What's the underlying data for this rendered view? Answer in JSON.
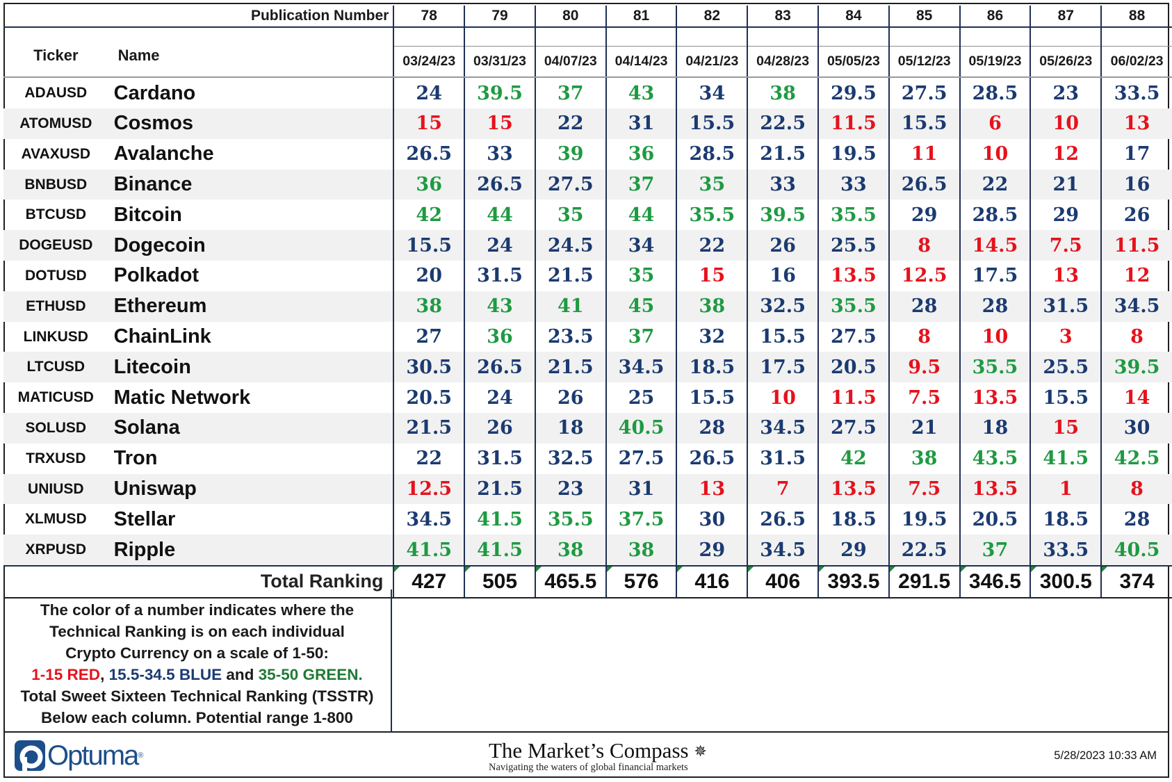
{
  "header": {
    "publication_label": "Publication Number",
    "ticker_label": "Ticker",
    "name_label": "Name",
    "publications": [
      "78",
      "79",
      "80",
      "81",
      "82",
      "83",
      "84",
      "85",
      "86",
      "87",
      "88"
    ],
    "dates": [
      "03/24/23",
      "03/31/23",
      "04/07/23",
      "04/14/23",
      "04/21/23",
      "04/28/23",
      "05/05/23",
      "05/12/23",
      "05/19/23",
      "05/26/23",
      "06/02/23"
    ]
  },
  "colors": {
    "red": "#e5121c",
    "blue": "#1b3a70",
    "green": "#1f9a42"
  },
  "rows": [
    {
      "ticker": "ADAUSD",
      "name": "Cardano",
      "values": [
        "24",
        "39.5",
        "37",
        "43",
        "34",
        "38",
        "29.5",
        "27.5",
        "28.5",
        "23",
        "33.5"
      ]
    },
    {
      "ticker": "ATOMUSD",
      "name": "Cosmos",
      "values": [
        "15",
        "15",
        "22",
        "31",
        "15.5",
        "22.5",
        "11.5",
        "15.5",
        "6",
        "10",
        "13"
      ]
    },
    {
      "ticker": "AVAXUSD",
      "name": "Avalanche",
      "values": [
        "26.5",
        "33",
        "39",
        "36",
        "28.5",
        "21.5",
        "19.5",
        "11",
        "10",
        "12",
        "17"
      ]
    },
    {
      "ticker": "BNBUSD",
      "name": "Binance",
      "values": [
        "36",
        "26.5",
        "27.5",
        "37",
        "35",
        "33",
        "33",
        "26.5",
        "22",
        "21",
        "16"
      ]
    },
    {
      "ticker": "BTCUSD",
      "name": "Bitcoin",
      "values": [
        "42",
        "44",
        "35",
        "44",
        "35.5",
        "39.5",
        "35.5",
        "29",
        "28.5",
        "29",
        "26"
      ]
    },
    {
      "ticker": "DOGEUSD",
      "name": "Dogecoin",
      "values": [
        "15.5",
        "24",
        "24.5",
        "34",
        "22",
        "26",
        "25.5",
        "8",
        "14.5",
        "7.5",
        "11.5"
      ]
    },
    {
      "ticker": "DOTUSD",
      "name": "Polkadot",
      "values": [
        "20",
        "31.5",
        "21.5",
        "35",
        "15",
        "16",
        "13.5",
        "12.5",
        "17.5",
        "13",
        "12"
      ]
    },
    {
      "ticker": "ETHUSD",
      "name": "Ethereum",
      "values": [
        "38",
        "43",
        "41",
        "45",
        "38",
        "32.5",
        "35.5",
        "28",
        "28",
        "31.5",
        "34.5"
      ]
    },
    {
      "ticker": "LINKUSD",
      "name": "ChainLink",
      "values": [
        "27",
        "36",
        "23.5",
        "37",
        "32",
        "15.5",
        "27.5",
        "8",
        "10",
        "3",
        "8"
      ]
    },
    {
      "ticker": "LTCUSD",
      "name": "Litecoin",
      "values": [
        "30.5",
        "26.5",
        "21.5",
        "34.5",
        "18.5",
        "17.5",
        "20.5",
        "9.5",
        "35.5",
        "25.5",
        "39.5"
      ]
    },
    {
      "ticker": "MATICUSD",
      "name": "Matic Network",
      "values": [
        "20.5",
        "24",
        "26",
        "25",
        "15.5",
        "10",
        "11.5",
        "7.5",
        "13.5",
        "15.5",
        "14"
      ]
    },
    {
      "ticker": "SOLUSD",
      "name": "Solana",
      "values": [
        "21.5",
        "26",
        "18",
        "40.5",
        "28",
        "34.5",
        "27.5",
        "21",
        "18",
        "15",
        "30"
      ]
    },
    {
      "ticker": "TRXUSD",
      "name": "Tron",
      "values": [
        "22",
        "31.5",
        "32.5",
        "27.5",
        "26.5",
        "31.5",
        "42",
        "38",
        "43.5",
        "41.5",
        "42.5"
      ]
    },
    {
      "ticker": "UNIUSD",
      "name": "Uniswap",
      "values": [
        "12.5",
        "21.5",
        "23",
        "31",
        "13",
        "7",
        "13.5",
        "7.5",
        "13.5",
        "1",
        "8"
      ]
    },
    {
      "ticker": "XLMUSD",
      "name": "Stellar",
      "values": [
        "34.5",
        "41.5",
        "35.5",
        "37.5",
        "30",
        "26.5",
        "18.5",
        "19.5",
        "20.5",
        "18.5",
        "28"
      ]
    },
    {
      "ticker": "XRPUSD",
      "name": "Ripple",
      "values": [
        "41.5",
        "41.5",
        "38",
        "38",
        "29",
        "34.5",
        "29",
        "22.5",
        "37",
        "33.5",
        "40.5"
      ]
    }
  ],
  "total": {
    "label": "Total Ranking",
    "values": [
      "427",
      "505",
      "465.5",
      "576",
      "416",
      "406",
      "393.5",
      "291.5",
      "346.5",
      "300.5",
      "374"
    ]
  },
  "legend": {
    "line1": "The color of a number indicates where the",
    "line2": "Technical Ranking is on each individual",
    "line3": "Crypto Currency on a scale of 1-50:",
    "red_range": "1-15 RED",
    "sep1": ", ",
    "blue_range": "15.5-34.5 BLUE",
    "sep2": " and ",
    "green_range": "35-50 GREEN.",
    "line5": "Total Sweet Sixteen Technical Ranking (TSSTR)",
    "line6": "Below each column.   Potential range 1-800"
  },
  "footer": {
    "logo_text": "Optuma",
    "logo_reg": "®",
    "compass_title": "The Market’s Compass",
    "compass_star": "✵",
    "compass_subtitle": "Navigating the waters of global financial markets",
    "timestamp": "5/28/2023 10:33 AM"
  }
}
